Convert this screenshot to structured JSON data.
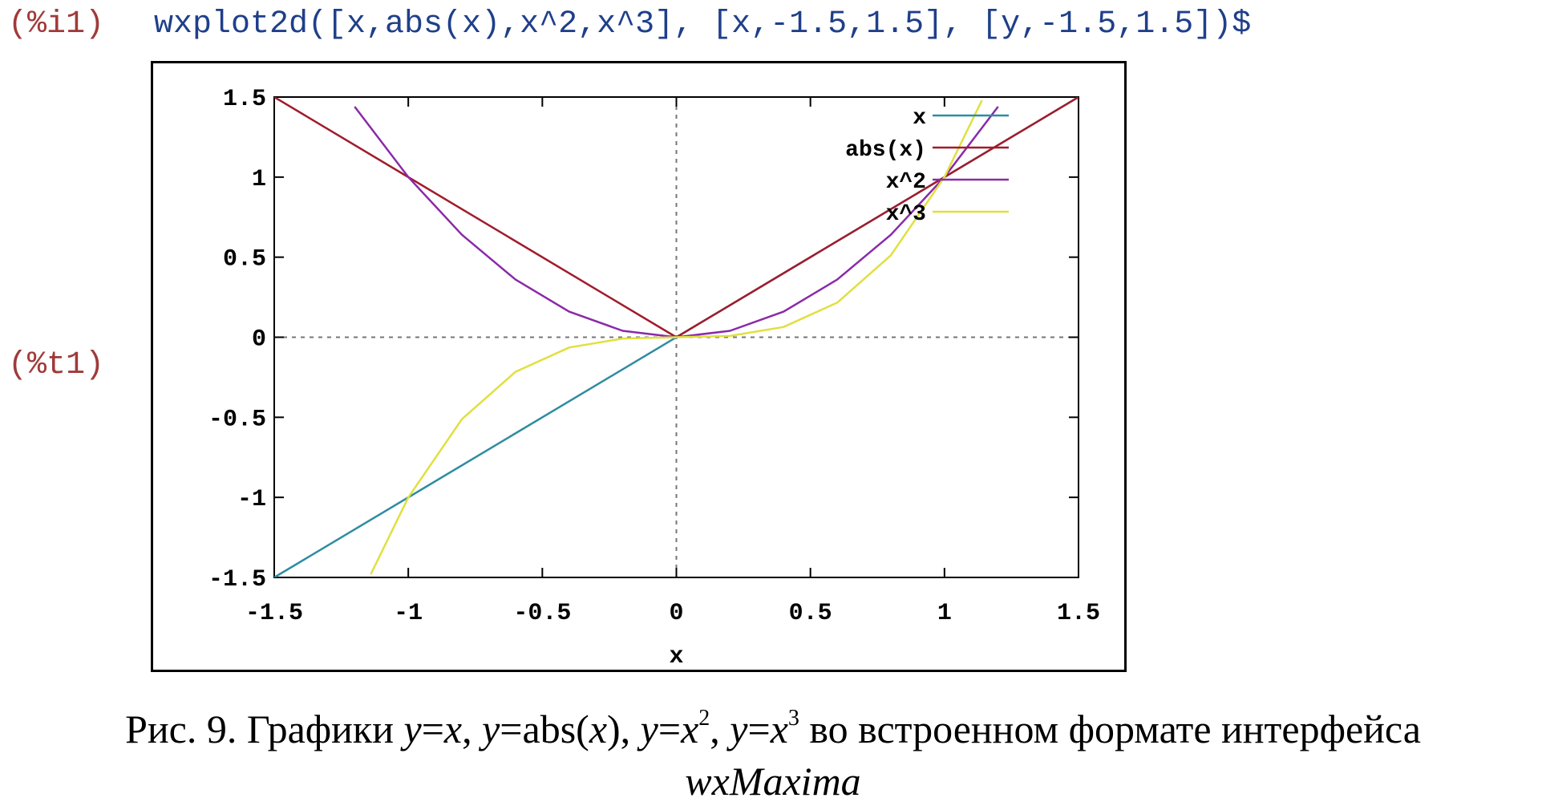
{
  "cells": {
    "input_label": "(%i1)",
    "input_code": "wxplot2d([x,abs(x),x^2,x^3], [x,-1.5,1.5], [y,-1.5,1.5])$",
    "output_label": "(%t1)"
  },
  "caption": {
    "prefix": "Рис. 9. Графики ",
    "y": "y",
    "eq": "=",
    "x": "x",
    "sep": ", ",
    "abs_open": "abs(",
    "abs_close": ")",
    "exp2": "2",
    "exp3": "3",
    "suffix": " во встроенном формате интерфейса",
    "line2": "wxMaxima"
  },
  "chart_data": {
    "type": "line",
    "title": "",
    "xlabel": "x",
    "ylabel": "",
    "xlim": [
      -1.5,
      1.5
    ],
    "ylim": [
      -1.5,
      1.5
    ],
    "xticks": [
      -1.5,
      -1,
      -0.5,
      0,
      0.5,
      1,
      1.5
    ],
    "yticks": [
      -1.5,
      -1,
      -0.5,
      0,
      0.5,
      1,
      1.5
    ],
    "xtick_labels": [
      "-1.5",
      "-1",
      "-0.5",
      "0",
      "0.5",
      "1",
      "1.5"
    ],
    "ytick_labels": [
      "-1.5",
      "-1",
      "-0.5",
      "0",
      "0.5",
      "1",
      "1.5"
    ],
    "zero_axes_dashed": true,
    "grid": false,
    "legend_position": "top-right",
    "series": [
      {
        "name": "x",
        "color": "#2f8ca0",
        "x": [
          -1.5,
          1.5
        ],
        "y": [
          -1.5,
          1.5
        ]
      },
      {
        "name": "abs(x)",
        "color": "#a01c2c",
        "x": [
          -1.5,
          0,
          1.5
        ],
        "y": [
          1.5,
          0,
          1.5
        ]
      },
      {
        "name": "x^2",
        "color": "#8a2aa8",
        "x": [
          -1.2,
          -1.0,
          -0.8,
          -0.6,
          -0.4,
          -0.2,
          0,
          0.2,
          0.4,
          0.6,
          0.8,
          1.0,
          1.2
        ],
        "y": [
          1.44,
          1.0,
          0.64,
          0.36,
          0.16,
          0.04,
          0,
          0.04,
          0.16,
          0.36,
          0.64,
          1.0,
          1.44
        ]
      },
      {
        "name": "x^3",
        "color": "#e0e040",
        "x": [
          -1.14,
          -1.0,
          -0.8,
          -0.6,
          -0.4,
          -0.2,
          0,
          0.2,
          0.4,
          0.6,
          0.8,
          1.0,
          1.14
        ],
        "y": [
          -1.48,
          -1.0,
          -0.512,
          -0.216,
          -0.064,
          -0.008,
          0,
          0.008,
          0.064,
          0.216,
          0.512,
          1.0,
          1.48
        ]
      }
    ]
  }
}
